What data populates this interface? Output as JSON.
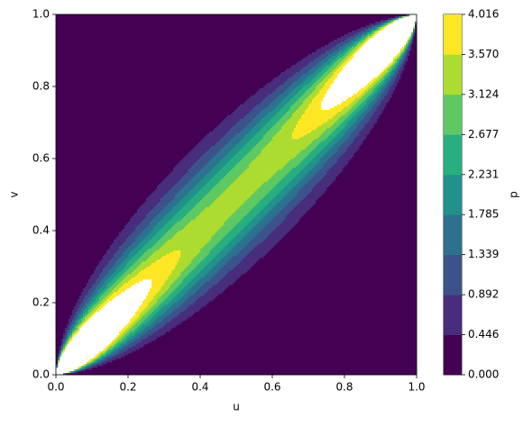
{
  "chart_data": {
    "type": "contour",
    "xlabel": "u",
    "ylabel": "v",
    "colorbar_label": "p",
    "xlim": [
      0,
      1
    ],
    "ylim": [
      0,
      1
    ],
    "xticks": [
      {
        "value": 0,
        "label": "0.0"
      },
      0.2,
      0.4,
      0.6,
      0.8,
      {
        "value": 1,
        "label": "1.0"
      }
    ],
    "yticks": [
      {
        "value": 0,
        "label": "0.0"
      },
      0.2,
      0.4,
      0.6,
      0.8,
      {
        "value": 1,
        "label": "1.0"
      }
    ],
    "levels": [
      {
        "value": 0,
        "label": "0.000"
      },
      0.446,
      0.892,
      1.339,
      1.785,
      2.231,
      2.677,
      3.124,
      {
        "value": 3.57,
        "label": "3.570"
      },
      4.016
    ],
    "colors": [
      "#440154",
      "#472d7b",
      "#3b528b",
      "#2c728e",
      "#21918c",
      "#28ae80",
      "#5ec962",
      "#addc30",
      "#fde725"
    ]
  }
}
